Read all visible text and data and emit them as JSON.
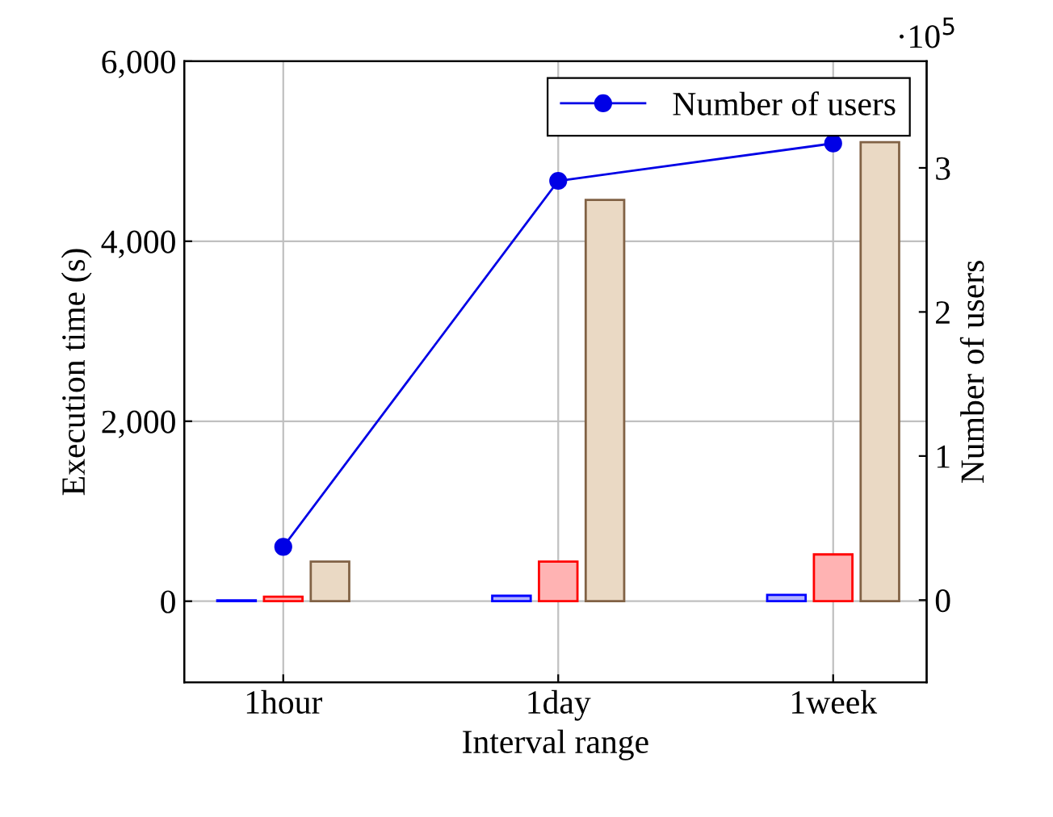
{
  "chart_data": {
    "type": "bar",
    "xlabel": "Interval range",
    "ylabel": "Execution time (s)",
    "y2label": "Number of users",
    "categories": [
      "1hour",
      "1day",
      "1week"
    ],
    "series": [
      {
        "color": "#b3b3ff",
        "values": [
          10,
          60,
          70
        ]
      },
      {
        "color": "#ffb3b3",
        "values": [
          50,
          440,
          520
        ]
      },
      {
        "color": "#ead9c4",
        "values": [
          440,
          4460,
          5100
        ]
      },
      {
        "name": "Number of users",
        "type": "line",
        "axis": "y2",
        "color": "#0000e6",
        "marker": "circle",
        "values": [
          0.37,
          2.91,
          3.17
        ]
      }
    ],
    "ylim": [
      -900,
      6000
    ],
    "yticks": [
      {
        "value": 0,
        "label": "0"
      },
      {
        "value": 2000,
        "label": "2,000"
      },
      {
        "value": 4000,
        "label": "4,000"
      },
      {
        "value": 6000,
        "label": "6,000"
      }
    ],
    "y2lim": [
      -0.57,
      3.74
    ],
    "y2ticks": [
      0,
      1,
      2,
      3
    ],
    "annotations": [
      "·10$^{5}$"
    ],
    "grid": true,
    "legend": "top right"
  }
}
